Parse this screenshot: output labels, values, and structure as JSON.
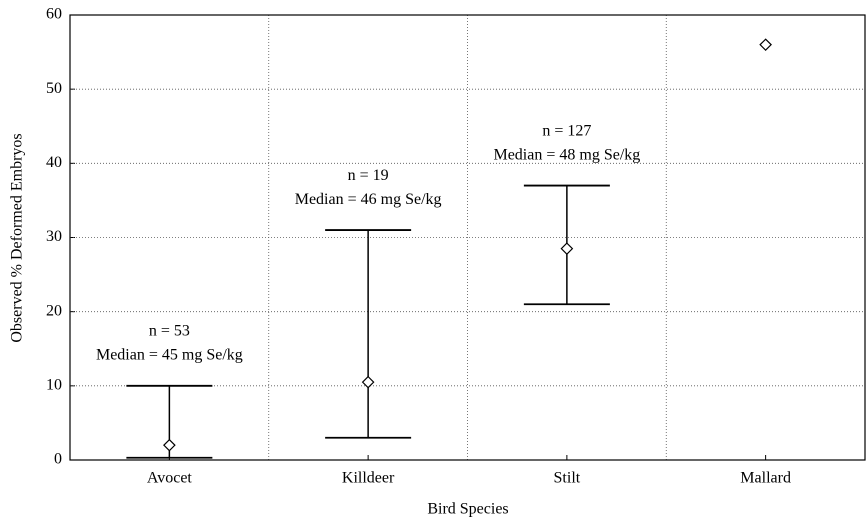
{
  "chart_data": {
    "type": "errorbar",
    "x_label": "Bird Species",
    "y_label": "Observed % Deformed Embryos",
    "categories": [
      "Avocet",
      "Killdeer",
      "Stilt",
      "Mallard"
    ],
    "values": [
      2,
      10.5,
      28.5,
      56
    ],
    "lower": [
      0.3,
      3,
      21,
      null
    ],
    "upper": [
      10,
      31,
      37,
      null
    ],
    "annotations": [
      [
        "n = 53",
        "Median = 45 mg Se/kg"
      ],
      [
        "n = 19",
        "Median = 46 mg Se/kg"
      ],
      [
        "n = 127",
        "Median = 48 mg Se/kg"
      ],
      null
    ],
    "ylim": [
      0,
      60
    ],
    "yticks": [
      0,
      10,
      20,
      30,
      40,
      50,
      60
    ],
    "grid": true,
    "color": "#000000"
  }
}
